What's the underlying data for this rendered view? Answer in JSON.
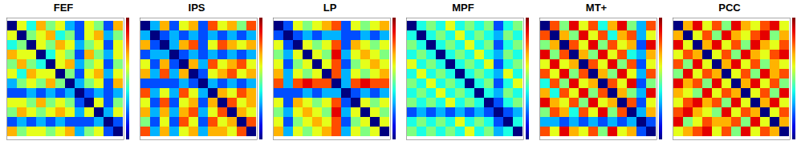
{
  "chart_data": [
    {
      "type": "heatmap",
      "title": "FEF",
      "color": "jet",
      "colorbar_range": [
        0,
        1
      ],
      "tick_labels": false,
      "cells": [
        [
          0,
          0.6,
          0.4,
          0.7,
          0.5,
          0.6,
          0.3,
          0.2,
          0.6,
          0.5,
          0.2,
          0.7
        ],
        [
          0.6,
          0,
          0.5,
          0.6,
          0.7,
          0.4,
          0.5,
          0.2,
          0.6,
          0.7,
          0.3,
          0.5
        ],
        [
          0.4,
          0.5,
          0,
          0.6,
          0.5,
          0.7,
          0.6,
          0.3,
          0.5,
          0.6,
          0.2,
          0.6
        ],
        [
          0.7,
          0.6,
          0.6,
          0,
          0.4,
          0.6,
          0.5,
          0.2,
          0.7,
          0.5,
          0.3,
          0.6
        ],
        [
          0.5,
          0.7,
          0.5,
          0.4,
          0,
          0.6,
          0.7,
          0.3,
          0.5,
          0.6,
          0.2,
          0.5
        ],
        [
          0.6,
          0.4,
          0.7,
          0.6,
          0.6,
          0,
          0.5,
          0.2,
          0.6,
          0.7,
          0.3,
          0.6
        ],
        [
          0.3,
          0.5,
          0.6,
          0.5,
          0.7,
          0.5,
          0,
          0.3,
          0.5,
          0.6,
          0.2,
          0.7
        ],
        [
          0.2,
          0.2,
          0.3,
          0.2,
          0.3,
          0.2,
          0.3,
          0,
          0.2,
          0.3,
          0.2,
          0.3
        ],
        [
          0.6,
          0.6,
          0.5,
          0.7,
          0.5,
          0.6,
          0.5,
          0.2,
          0,
          0.6,
          0.2,
          0.5
        ],
        [
          0.5,
          0.7,
          0.6,
          0.5,
          0.6,
          0.7,
          0.6,
          0.3,
          0.6,
          0,
          0.3,
          0.6
        ],
        [
          0.2,
          0.3,
          0.2,
          0.3,
          0.2,
          0.3,
          0.2,
          0.2,
          0.2,
          0.3,
          0,
          0.2
        ],
        [
          0.7,
          0.5,
          0.6,
          0.6,
          0.5,
          0.6,
          0.7,
          0.3,
          0.5,
          0.6,
          0.2,
          0
        ]
      ]
    },
    {
      "type": "heatmap",
      "title": "IPS",
      "color": "jet",
      "colorbar_range": [
        0,
        1
      ],
      "tick_labels": false,
      "cells": [
        [
          0,
          0.3,
          0.7,
          0.2,
          0.6,
          0.7,
          0.2,
          0.8,
          0.6,
          0.7,
          0.5,
          0.8
        ],
        [
          0.3,
          0,
          0.2,
          0.3,
          0.2,
          0.3,
          0.2,
          0.3,
          0.2,
          0.3,
          0.2,
          0.3
        ],
        [
          0.7,
          0.2,
          0,
          0.3,
          0.7,
          0.8,
          0.2,
          0.6,
          0.8,
          0.7,
          0.6,
          0.7
        ],
        [
          0.2,
          0.3,
          0.3,
          0,
          0.2,
          0.3,
          0.2,
          0.3,
          0.2,
          0.3,
          0.2,
          0.3
        ],
        [
          0.6,
          0.2,
          0.7,
          0.2,
          0,
          0.7,
          0.3,
          0.8,
          0.6,
          0.7,
          0.8,
          0.6
        ],
        [
          0.7,
          0.3,
          0.8,
          0.3,
          0.7,
          0,
          0.2,
          0.6,
          0.7,
          0.8,
          0.6,
          0.7
        ],
        [
          0.2,
          0.2,
          0.2,
          0.2,
          0.3,
          0.2,
          0,
          0.3,
          0.2,
          0.3,
          0.2,
          0.3
        ],
        [
          0.8,
          0.3,
          0.6,
          0.3,
          0.8,
          0.6,
          0.3,
          0,
          0.7,
          0.6,
          0.8,
          0.7
        ],
        [
          0.6,
          0.2,
          0.8,
          0.2,
          0.6,
          0.7,
          0.2,
          0.7,
          0,
          0.8,
          0.6,
          0.7
        ],
        [
          0.7,
          0.3,
          0.7,
          0.3,
          0.7,
          0.8,
          0.3,
          0.6,
          0.8,
          0,
          0.7,
          0.6
        ],
        [
          0.5,
          0.2,
          0.6,
          0.2,
          0.8,
          0.6,
          0.2,
          0.8,
          0.6,
          0.7,
          0,
          0.8
        ],
        [
          0.8,
          0.3,
          0.7,
          0.3,
          0.6,
          0.7,
          0.3,
          0.7,
          0.7,
          0.6,
          0.8,
          0
        ]
      ]
    },
    {
      "type": "heatmap",
      "title": "LP",
      "color": "jet",
      "colorbar_range": [
        0,
        1
      ],
      "tick_labels": false,
      "cells": [
        [
          0,
          0.2,
          0.6,
          0.5,
          0.6,
          0.7,
          0.8,
          0.2,
          0.6,
          0.5,
          0.6,
          0.7
        ],
        [
          0.2,
          0,
          0.2,
          0.3,
          0.2,
          0.3,
          0.3,
          0.2,
          0.2,
          0.3,
          0.2,
          0.3
        ],
        [
          0.6,
          0.2,
          0,
          0.6,
          0.5,
          0.6,
          0.8,
          0.2,
          0.7,
          0.6,
          0.5,
          0.6
        ],
        [
          0.5,
          0.3,
          0.6,
          0,
          0.6,
          0.5,
          0.9,
          0.3,
          0.6,
          0.7,
          0.6,
          0.5
        ],
        [
          0.6,
          0.2,
          0.5,
          0.6,
          0,
          0.6,
          0.8,
          0.2,
          0.5,
          0.6,
          0.7,
          0.6
        ],
        [
          0.7,
          0.3,
          0.6,
          0.5,
          0.6,
          0,
          0.8,
          0.3,
          0.6,
          0.5,
          0.6,
          0.7
        ],
        [
          0.8,
          0.3,
          0.8,
          0.9,
          0.8,
          0.8,
          0,
          0.3,
          0.8,
          0.9,
          0.8,
          0.8
        ],
        [
          0.2,
          0.2,
          0.2,
          0.3,
          0.2,
          0.3,
          0.3,
          0,
          0.2,
          0.3,
          0.2,
          0.3
        ],
        [
          0.6,
          0.2,
          0.7,
          0.6,
          0.5,
          0.6,
          0.8,
          0.2,
          0,
          0.6,
          0.5,
          0.6
        ],
        [
          0.5,
          0.3,
          0.6,
          0.7,
          0.6,
          0.5,
          0.9,
          0.3,
          0.6,
          0,
          0.6,
          0.5
        ],
        [
          0.6,
          0.2,
          0.5,
          0.6,
          0.7,
          0.6,
          0.8,
          0.2,
          0.5,
          0.6,
          0,
          0.6
        ],
        [
          0.7,
          0.3,
          0.6,
          0.5,
          0.6,
          0.7,
          0.8,
          0.3,
          0.6,
          0.5,
          0.6,
          0
        ]
      ]
    },
    {
      "type": "heatmap",
      "title": "MPF",
      "color": "jet",
      "colorbar_range": [
        0,
        1
      ],
      "tick_labels": false,
      "cells": [
        [
          0,
          0.4,
          0.5,
          0.4,
          0.6,
          0.4,
          0.5,
          0.4,
          0.5,
          0.2,
          0.4,
          0.5
        ],
        [
          0.4,
          0,
          0.4,
          0.5,
          0.4,
          0.6,
          0.4,
          0.5,
          0.4,
          0.3,
          0.5,
          0.4
        ],
        [
          0.5,
          0.4,
          0,
          0.4,
          0.5,
          0.4,
          0.6,
          0.4,
          0.5,
          0.2,
          0.4,
          0.5
        ],
        [
          0.4,
          0.5,
          0.4,
          0,
          0.4,
          0.5,
          0.4,
          0.6,
          0.4,
          0.3,
          0.5,
          0.4
        ],
        [
          0.6,
          0.4,
          0.5,
          0.4,
          0,
          0.4,
          0.5,
          0.4,
          0.6,
          0.2,
          0.4,
          0.5
        ],
        [
          0.4,
          0.6,
          0.4,
          0.5,
          0.4,
          0,
          0.4,
          0.5,
          0.4,
          0.3,
          0.6,
          0.4
        ],
        [
          0.5,
          0.4,
          0.6,
          0.4,
          0.5,
          0.4,
          0,
          0.4,
          0.5,
          0.2,
          0.4,
          0.6
        ],
        [
          0.4,
          0.5,
          0.4,
          0.6,
          0.4,
          0.5,
          0.4,
          0,
          0.4,
          0.3,
          0.5,
          0.4
        ],
        [
          0.5,
          0.4,
          0.5,
          0.4,
          0.6,
          0.4,
          0.5,
          0.4,
          0,
          0.2,
          0.4,
          0.5
        ],
        [
          0.2,
          0.3,
          0.2,
          0.3,
          0.2,
          0.3,
          0.2,
          0.3,
          0.2,
          0,
          0.2,
          0.3
        ],
        [
          0.4,
          0.5,
          0.4,
          0.5,
          0.4,
          0.6,
          0.4,
          0.5,
          0.4,
          0.2,
          0,
          0.4
        ],
        [
          0.5,
          0.4,
          0.5,
          0.4,
          0.5,
          0.4,
          0.6,
          0.4,
          0.5,
          0.3,
          0.4,
          0
        ]
      ]
    },
    {
      "type": "heatmap",
      "title": "MT+",
      "color": "jet",
      "colorbar_range": [
        0,
        1
      ],
      "tick_labels": false,
      "cells": [
        [
          0,
          0.8,
          0.5,
          0.9,
          0.6,
          0.8,
          0.4,
          0.7,
          0.9,
          0.5,
          0.3,
          0.8
        ],
        [
          0.8,
          0,
          0.7,
          0.5,
          0.9,
          0.6,
          0.8,
          0.4,
          0.7,
          0.8,
          0.3,
          0.6
        ],
        [
          0.5,
          0.7,
          0,
          0.8,
          0.6,
          0.9,
          0.5,
          0.8,
          0.6,
          0.7,
          0.2,
          0.9
        ],
        [
          0.9,
          0.5,
          0.8,
          0,
          0.7,
          0.5,
          0.9,
          0.6,
          0.8,
          0.4,
          0.3,
          0.7
        ],
        [
          0.6,
          0.9,
          0.6,
          0.7,
          0,
          0.8,
          0.6,
          0.9,
          0.5,
          0.8,
          0.2,
          0.6
        ],
        [
          0.8,
          0.6,
          0.9,
          0.5,
          0.8,
          0,
          0.7,
          0.5,
          0.9,
          0.6,
          0.3,
          0.8
        ],
        [
          0.4,
          0.8,
          0.5,
          0.9,
          0.6,
          0.7,
          0,
          0.8,
          0.6,
          0.9,
          0.2,
          0.5
        ],
        [
          0.7,
          0.4,
          0.8,
          0.6,
          0.9,
          0.5,
          0.8,
          0,
          0.7,
          0.5,
          0.3,
          0.9
        ],
        [
          0.9,
          0.7,
          0.6,
          0.8,
          0.5,
          0.9,
          0.6,
          0.7,
          0,
          0.8,
          0.2,
          0.6
        ],
        [
          0.5,
          0.8,
          0.7,
          0.4,
          0.8,
          0.6,
          0.9,
          0.5,
          0.8,
          0,
          0.3,
          0.7
        ],
        [
          0.3,
          0.3,
          0.2,
          0.3,
          0.2,
          0.3,
          0.2,
          0.3,
          0.2,
          0.3,
          0,
          0.2
        ],
        [
          0.8,
          0.6,
          0.9,
          0.7,
          0.6,
          0.8,
          0.5,
          0.9,
          0.6,
          0.7,
          0.2,
          0
        ]
      ]
    },
    {
      "type": "heatmap",
      "title": "PCC",
      "color": "jet",
      "colorbar_range": [
        0,
        1
      ],
      "tick_labels": false,
      "cells": [
        [
          0,
          0.7,
          0.9,
          0.6,
          0.8,
          0.5,
          0.9,
          0.7,
          0.6,
          0.8,
          0.9,
          0.6
        ],
        [
          0.7,
          0,
          0.6,
          0.8,
          0.5,
          0.9,
          0.7,
          0.6,
          0.8,
          0.9,
          0.5,
          0.7
        ],
        [
          0.9,
          0.6,
          0,
          0.7,
          0.9,
          0.6,
          0.8,
          0.5,
          0.9,
          0.7,
          0.6,
          0.8
        ],
        [
          0.6,
          0.8,
          0.7,
          0,
          0.6,
          0.8,
          0.5,
          0.9,
          0.7,
          0.6,
          0.8,
          0.9
        ],
        [
          0.8,
          0.5,
          0.9,
          0.6,
          0,
          0.7,
          0.9,
          0.6,
          0.8,
          0.5,
          0.7,
          0.6
        ],
        [
          0.5,
          0.9,
          0.6,
          0.8,
          0.7,
          0,
          0.6,
          0.8,
          0.5,
          0.9,
          0.7,
          0.8
        ],
        [
          0.9,
          0.7,
          0.8,
          0.5,
          0.9,
          0.6,
          0,
          0.7,
          0.9,
          0.6,
          0.8,
          0.5
        ],
        [
          0.7,
          0.6,
          0.5,
          0.9,
          0.6,
          0.8,
          0.7,
          0,
          0.6,
          0.8,
          0.5,
          0.9
        ],
        [
          0.6,
          0.8,
          0.9,
          0.7,
          0.8,
          0.5,
          0.9,
          0.6,
          0,
          0.7,
          0.9,
          0.6
        ],
        [
          0.8,
          0.9,
          0.7,
          0.6,
          0.5,
          0.9,
          0.6,
          0.8,
          0.7,
          0,
          0.6,
          0.8
        ],
        [
          0.9,
          0.5,
          0.6,
          0.8,
          0.7,
          0.7,
          0.8,
          0.5,
          0.9,
          0.6,
          0,
          0.7
        ],
        [
          0.6,
          0.7,
          0.8,
          0.9,
          0.6,
          0.8,
          0.5,
          0.9,
          0.6,
          0.8,
          0.7,
          0
        ]
      ]
    }
  ]
}
